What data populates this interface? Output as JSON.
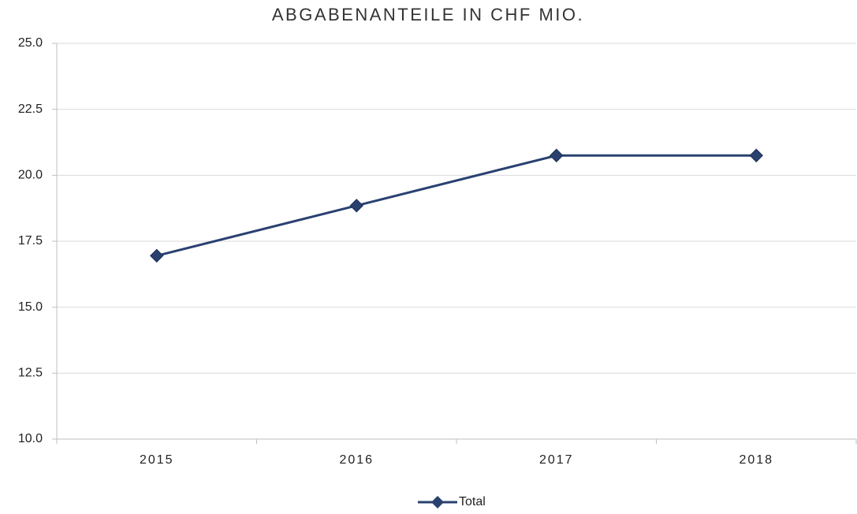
{
  "chart_data": {
    "type": "line",
    "title": "ABGABENANTEILE IN CHF MIO.",
    "categories": [
      "2015",
      "2016",
      "2017",
      "2018"
    ],
    "series": [
      {
        "name": "Total",
        "color": "#2a4170",
        "values": [
          16.95,
          18.85,
          20.75,
          20.75
        ]
      }
    ],
    "ylim": [
      10,
      25
    ],
    "yticks": [
      {
        "value": 10,
        "label": "10.0"
      },
      12.5,
      {
        "value": 15,
        "label": "15.0"
      },
      17.5,
      {
        "value": 20,
        "label": "20.0"
      },
      22.5,
      {
        "value": 25,
        "label": "25.0"
      }
    ],
    "grid": true,
    "legend": "bottom"
  }
}
